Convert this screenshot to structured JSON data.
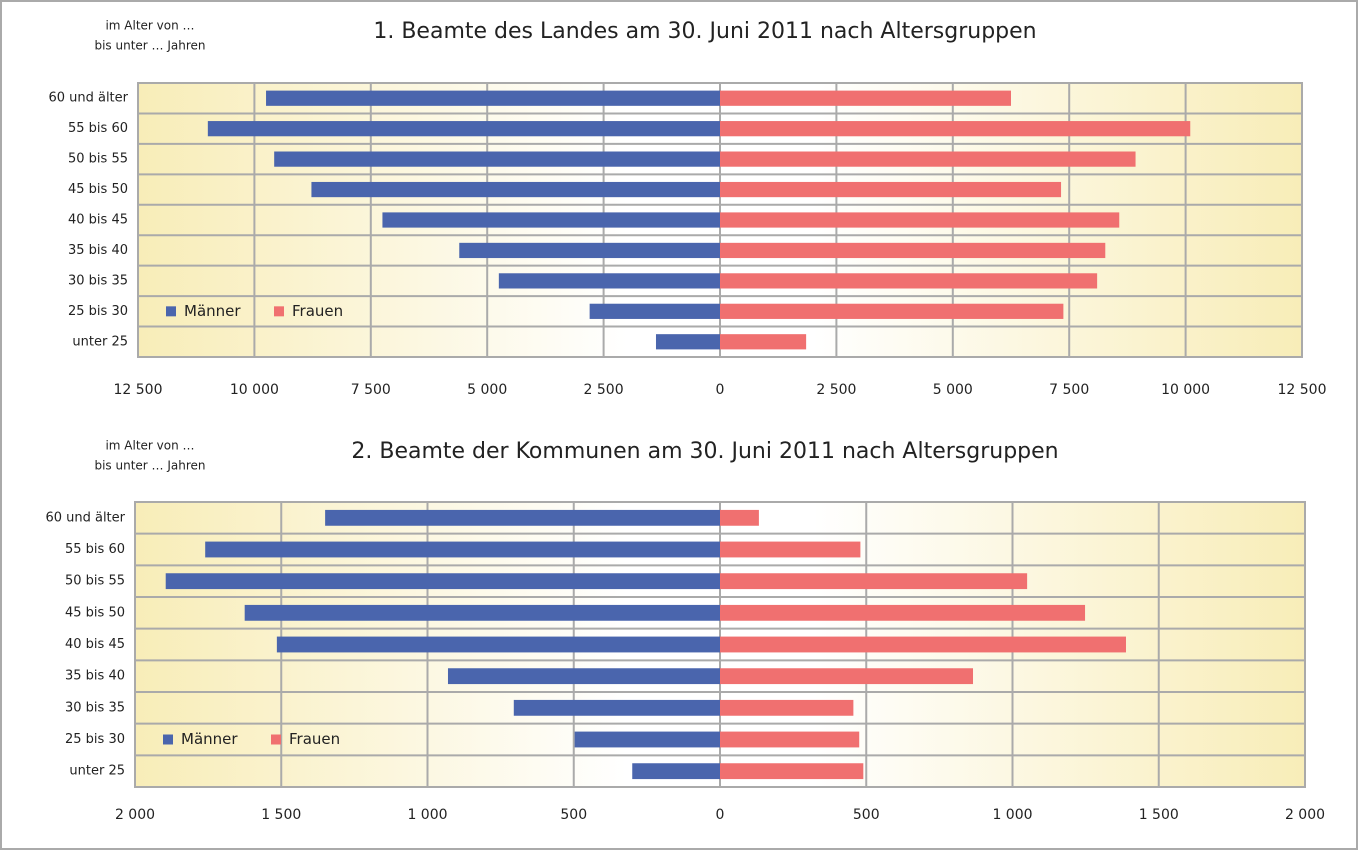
{
  "chart_data": [
    {
      "type": "pyramid",
      "title": "1. Beamte des Landes am 30. Juni 2011 nach Altersgruppen",
      "axis_label": [
        "im Alter von …",
        "bis unter … Jahren"
      ],
      "categories": [
        "60 und älter",
        "55 bis 60",
        "50 bis 55",
        "45 bis 50",
        "40 bis 45",
        "35 bis 40",
        "30 bis 35",
        "25 bis 30",
        "unter 25"
      ],
      "series": [
        {
          "name": "Männer",
          "color": "#4a65ad",
          "side": "left",
          "values": [
            9750,
            11000,
            9575,
            8775,
            7250,
            5600,
            4750,
            2800,
            1375
          ]
        },
        {
          "name": "Frauen",
          "color": "#f07070",
          "side": "right",
          "values": [
            6250,
            10100,
            8925,
            7325,
            8575,
            8275,
            8100,
            7375,
            1850
          ]
        }
      ],
      "xlim": [
        -12500,
        12500
      ],
      "xticks": [
        {
          "value": -12500,
          "label": "12 500"
        },
        {
          "value": -10000,
          "label": "10 000"
        },
        {
          "value": -7500,
          "label": "7 500"
        },
        {
          "value": -5000,
          "label": "5 000"
        },
        {
          "value": -2500,
          "label": "2 500"
        },
        0,
        {
          "value": 2500,
          "label": "2 500"
        },
        {
          "value": 5000,
          "label": "5 000"
        },
        {
          "value": 7500,
          "label": "7 500"
        },
        {
          "value": 10000,
          "label": "10 000"
        },
        {
          "value": 12500,
          "label": "12 500"
        }
      ],
      "grid": true,
      "legend": "lower left"
    },
    {
      "type": "pyramid",
      "title": "2. Beamte der Kommunen am 30. Juni 2011 nach Altersgruppen",
      "axis_label": [
        "im Alter von …",
        "bis unter … Jahren"
      ],
      "categories": [
        "60 und älter",
        "55 bis 60",
        "50 bis 55",
        "45 bis 50",
        "40 bis 45",
        "35 bis 40",
        "30 bis 35",
        "25 bis 30",
        "unter 25"
      ],
      "series": [
        {
          "name": "Männer",
          "color": "#4a65ad",
          "side": "left",
          "values": [
            1350,
            1760,
            1895,
            1625,
            1515,
            930,
            705,
            497,
            300
          ]
        },
        {
          "name": "Frauen",
          "color": "#f07070",
          "side": "right",
          "values": [
            133,
            480,
            1050,
            1248,
            1388,
            865,
            456,
            476,
            490
          ]
        }
      ],
      "xlim": [
        -2000,
        2000
      ],
      "xticks": [
        {
          "value": -2000,
          "label": "2 000"
        },
        {
          "value": -1500,
          "label": "1 500"
        },
        {
          "value": -1000,
          "label": "1 000"
        },
        {
          "value": -500,
          "label": "500"
        },
        0,
        {
          "value": 500,
          "label": "500"
        },
        {
          "value": 1000,
          "label": "1 000"
        },
        {
          "value": 1500,
          "label": "1 500"
        },
        {
          "value": 2000,
          "label": "2 000"
        }
      ],
      "grid": true,
      "legend": "lower left"
    }
  ]
}
